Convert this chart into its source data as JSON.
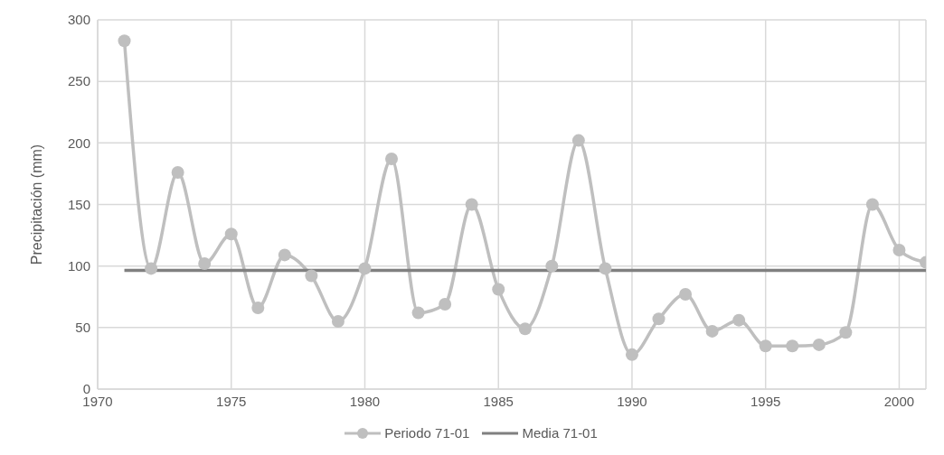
{
  "chart_data": {
    "type": "line",
    "ylabel": "Precipitación (mm)",
    "xlim": [
      1970,
      2001
    ],
    "xticks": [
      1970,
      1975,
      1980,
      1985,
      1990,
      1995,
      2000
    ],
    "ylim": [
      0,
      300
    ],
    "yticks": [
      0,
      50,
      100,
      150,
      200,
      250,
      300
    ],
    "grid": true,
    "legend": "bottom",
    "marker": "circle",
    "line_style": "solid",
    "series": [
      {
        "name": "Periodo 71-01",
        "color": "#bfbfbf",
        "x": [
          1971,
          1972,
          1973,
          1974,
          1975,
          1976,
          1977,
          1978,
          1979,
          1980,
          1981,
          1982,
          1983,
          1984,
          1985,
          1986,
          1987,
          1988,
          1989,
          1990,
          1991,
          1992,
          1993,
          1994,
          1995,
          1996,
          1997,
          1998,
          1999,
          2000,
          2001
        ],
        "values": [
          283,
          98,
          176,
          102,
          126,
          66,
          109,
          92,
          55,
          98,
          187,
          62,
          69,
          150,
          81,
          49,
          100,
          202,
          98,
          28,
          57,
          77,
          47,
          56,
          35,
          35,
          36,
          46,
          150,
          113,
          103
        ]
      },
      {
        "name": "Media 71-01",
        "color": "#808080",
        "marker": "none",
        "x": [
          1971,
          2001
        ],
        "values": [
          96.5,
          96.5
        ]
      }
    ]
  }
}
